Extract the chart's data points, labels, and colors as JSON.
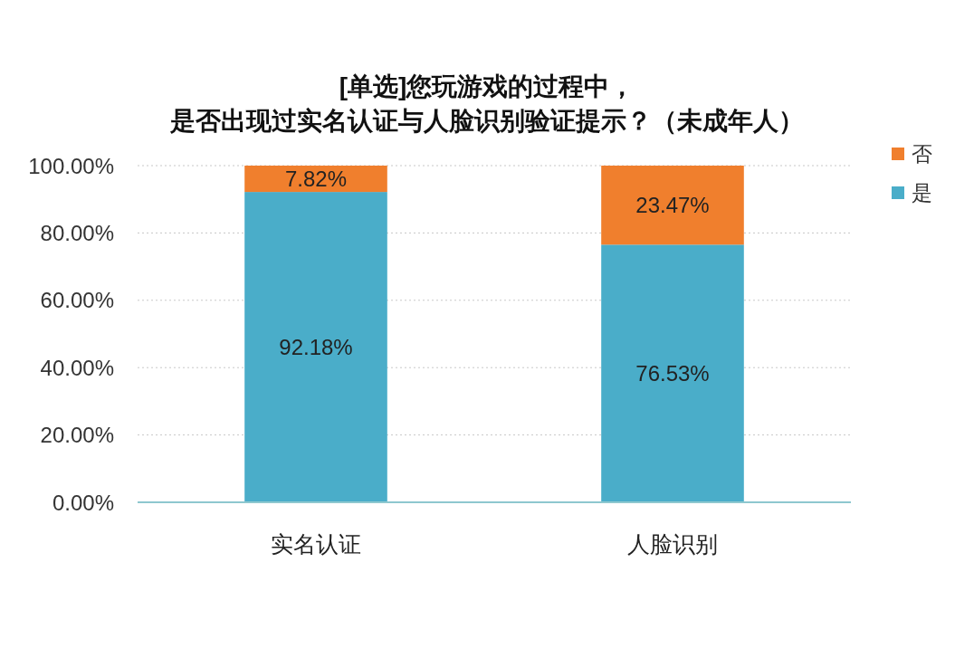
{
  "chart_data": {
    "type": "bar",
    "stacked": true,
    "title": "[单选]您玩游戏的过程中，是否出现过实名认证与人脸识别验证提示？（未成年人）",
    "categories": [
      "实名认证",
      "人脸识别"
    ],
    "series": [
      {
        "name": "是",
        "color": "#4aadc9",
        "values": [
          92.18,
          76.53
        ],
        "value_labels": [
          "92.18%",
          "76.53%"
        ]
      },
      {
        "name": "否",
        "color": "#f07f2d",
        "values": [
          7.82,
          23.47
        ],
        "value_labels": [
          "7.82%",
          "23.47%"
        ]
      }
    ],
    "ylim": [
      0,
      100
    ],
    "yticks": [
      {
        "value": 0,
        "label": "0.00%"
      },
      {
        "value": 20,
        "label": "20.00%"
      },
      {
        "value": 40,
        "label": "40.00%"
      },
      {
        "value": 60,
        "label": "60.00%"
      },
      {
        "value": 80,
        "label": "80.00%"
      },
      {
        "value": 100,
        "label": "100.00%"
      }
    ],
    "grid": "y",
    "legend": "top right"
  }
}
